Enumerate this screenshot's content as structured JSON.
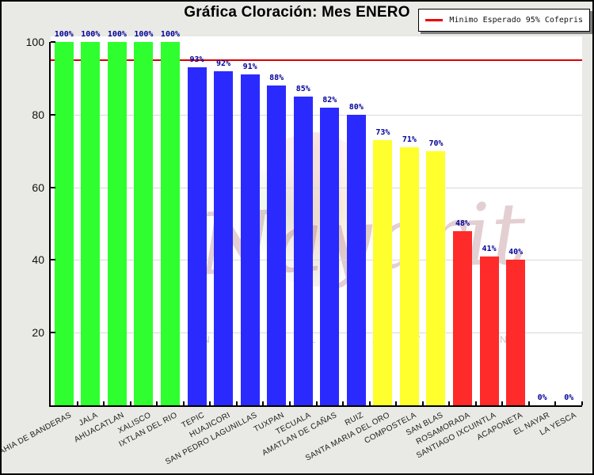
{
  "title": "Gráfica Cloración: Mes ENERO",
  "legend": {
    "label": "Minimo Esperado 95% Cofepris",
    "line_color": "#ee0000"
  },
  "watermark": {
    "script_text": "Nayarit",
    "tagline_fragments": "N ST L TA Y M N"
  },
  "chart_data": {
    "type": "bar",
    "title": "Gráfica Cloración: Mes ENERO",
    "xlabel": "",
    "ylabel": "",
    "ylim": [
      0,
      100
    ],
    "yticks": [
      20,
      40,
      60,
      80,
      100
    ],
    "grid": true,
    "legend_position": "top-right",
    "categories": [
      "BAHIA DE BANDERAS",
      "JALA",
      "AHUACATLAN",
      "XALISCO",
      "IXTLAN DEL RIO",
      "TEPIC",
      "HUAJICORI",
      "SAN PEDRO LAGUNILLAS",
      "TUXPAN",
      "TECUALA",
      "AMATLAN DE CAÑAS",
      "RUIZ",
      "SANTA MARIA DEL ORO",
      "COMPOSTELA",
      "SAN BLAS",
      "ROSAMORADA",
      "SANTIAGO IXCUINTLA",
      "ACAPONETA",
      "EL NAYAR",
      "LA YESCA"
    ],
    "values": [
      100,
      100,
      100,
      100,
      100,
      93,
      92,
      91,
      88,
      85,
      82,
      80,
      73,
      71,
      70,
      48,
      41,
      40,
      0,
      0
    ],
    "value_labels": [
      "100%",
      "100%",
      "100%",
      "100%",
      "100%",
      "93%",
      "92%",
      "91%",
      "88%",
      "85%",
      "82%",
      "80%",
      "73%",
      "71%",
      "70%",
      "48%",
      "41%",
      "40%",
      "0%",
      "0%"
    ],
    "bar_colors": [
      "#2fff2f",
      "#2fff2f",
      "#2fff2f",
      "#2fff2f",
      "#2fff2f",
      "#2a2aff",
      "#2a2aff",
      "#2a2aff",
      "#2a2aff",
      "#2a2aff",
      "#2a2aff",
      "#2a2aff",
      "#ffff2e",
      "#ffff2e",
      "#ffff2e",
      "#ff2a2a",
      "#ff2a2a",
      "#ff2a2a",
      "none",
      "none"
    ],
    "target_line": {
      "value": 95,
      "color": "#dd0000",
      "label": "Minimo Esperado 95% Cofepris"
    },
    "value_label_color": "#000099",
    "grid_color": "#d9d9d9"
  }
}
